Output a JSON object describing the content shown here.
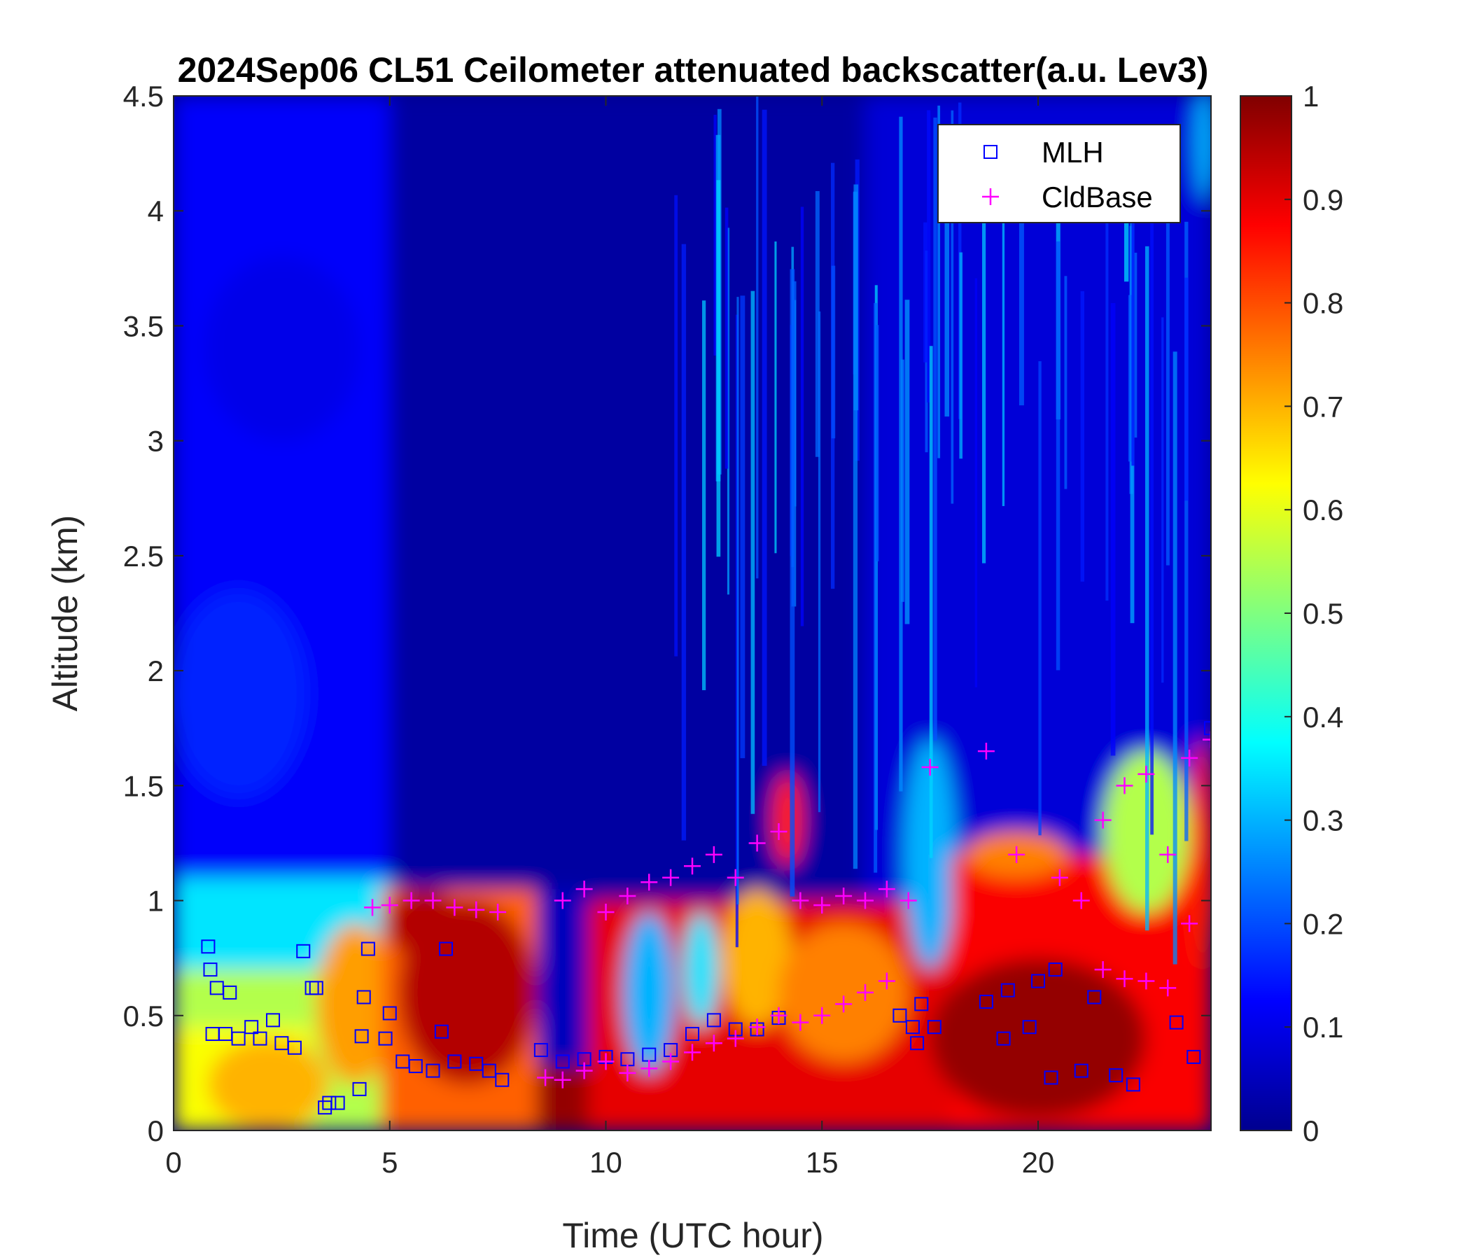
{
  "chart_data": {
    "type": "heatmap",
    "title": "2024Sep06 CL51 Ceilometer attenuated backscatter(a.u. Lev3)",
    "xlabel": "Time (UTC hour)",
    "ylabel": "Altitude (km)",
    "xlim": [
      0,
      24
    ],
    "ylim": [
      0,
      4.5
    ],
    "xticks": [
      0,
      5,
      10,
      15,
      20
    ],
    "yticks": [
      0,
      0.5,
      1,
      1.5,
      2,
      2.5,
      3,
      3.5,
      4,
      4.5
    ],
    "colorbar": {
      "range": [
        0,
        1
      ],
      "ticks": [
        0,
        0.1,
        0.2,
        0.3,
        0.4,
        0.5,
        0.6,
        0.7,
        0.8,
        0.9,
        1
      ],
      "colormap": "jet"
    },
    "legend": {
      "position": "top-right"
    },
    "series": [
      {
        "name": "MLH",
        "marker": "square",
        "color": "#0000ff",
        "x": [
          0.8,
          0.85,
          0.9,
          1.0,
          1.2,
          1.3,
          1.5,
          1.8,
          2.0,
          2.3,
          2.5,
          2.8,
          3.0,
          3.2,
          3.3,
          3.5,
          3.6,
          3.8,
          4.3,
          4.35,
          4.4,
          4.5,
          4.9,
          5.0,
          5.3,
          5.6,
          6.0,
          6.2,
          6.3,
          6.5,
          7.0,
          7.3,
          7.6,
          8.5,
          9.0,
          9.5,
          10.0,
          10.5,
          11.0,
          11.5,
          12.0,
          12.5,
          13.0,
          13.5,
          14.0,
          16.8,
          17.1,
          17.2,
          17.3,
          17.6,
          18.8,
          19.2,
          19.3,
          19.8,
          20.0,
          20.3,
          20.4,
          21.0,
          21.3,
          21.8,
          22.2,
          23.2,
          23.6,
          24.0
        ],
        "y": [
          0.8,
          0.7,
          0.42,
          0.62,
          0.42,
          0.6,
          0.4,
          0.45,
          0.4,
          0.48,
          0.38,
          0.36,
          0.78,
          0.62,
          0.62,
          0.1,
          0.12,
          0.12,
          0.18,
          0.41,
          0.58,
          0.79,
          0.4,
          0.51,
          0.3,
          0.28,
          0.26,
          0.43,
          0.79,
          0.3,
          0.29,
          0.26,
          0.22,
          0.35,
          0.3,
          0.31,
          0.32,
          0.31,
          0.33,
          0.35,
          0.42,
          0.48,
          0.44,
          0.44,
          0.49,
          0.5,
          0.45,
          0.38,
          0.55,
          0.45,
          0.56,
          0.4,
          0.61,
          0.45,
          0.65,
          0.23,
          0.7,
          0.26,
          0.58,
          0.24,
          0.2,
          0.47,
          0.32,
          1.75
        ]
      },
      {
        "name": "CldBase",
        "marker": "plus",
        "color": "#ff00ff",
        "x": [
          4.6,
          5.0,
          5.5,
          6.0,
          6.5,
          7.0,
          7.5,
          9.0,
          9.5,
          10.0,
          10.5,
          11.0,
          11.5,
          12.0,
          12.5,
          13.0,
          13.5,
          14.0,
          14.5,
          15.0,
          15.5,
          16.0,
          16.5,
          17.0,
          17.5,
          18.8,
          19.5,
          20.5,
          21.0,
          21.5,
          22.0,
          22.5,
          23.0,
          23.5,
          24.0,
          8.6,
          9.0,
          9.5,
          10.0,
          10.5,
          11.0,
          11.5,
          12.0,
          12.5,
          13.0,
          13.5,
          14.0,
          14.5,
          15.0,
          15.5,
          16.0,
          16.5,
          21.5,
          22.0,
          22.5,
          23.0,
          23.5
        ],
        "y": [
          0.97,
          0.98,
          1.0,
          1.0,
          0.97,
          0.96,
          0.95,
          1.0,
          1.05,
          0.95,
          1.02,
          1.08,
          1.1,
          1.15,
          1.2,
          1.1,
          1.25,
          1.3,
          1.0,
          0.98,
          1.02,
          1.0,
          1.05,
          1.0,
          1.58,
          1.65,
          1.2,
          1.1,
          1.0,
          1.35,
          1.5,
          1.55,
          1.2,
          1.62,
          1.7,
          0.23,
          0.22,
          0.26,
          0.3,
          0.25,
          0.27,
          0.3,
          0.34,
          0.38,
          0.4,
          0.45,
          0.5,
          0.47,
          0.5,
          0.55,
          0.6,
          0.65,
          0.7,
          0.66,
          0.65,
          0.62,
          0.9
        ]
      }
    ]
  }
}
